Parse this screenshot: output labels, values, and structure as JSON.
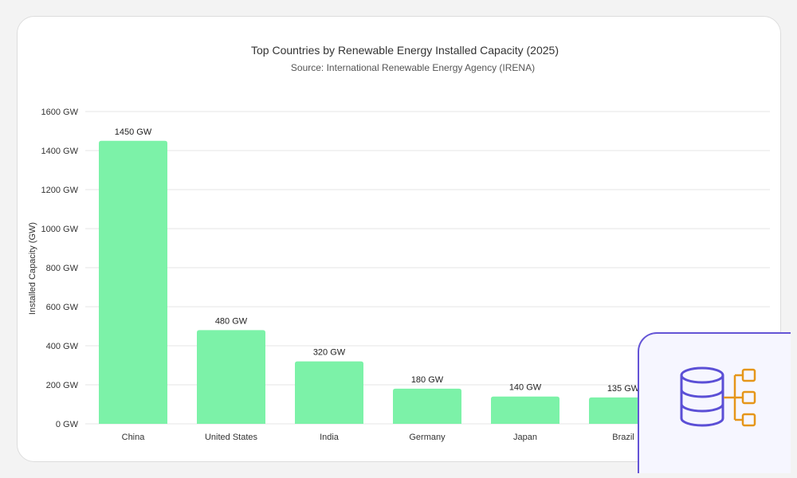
{
  "chart_data": {
    "type": "bar",
    "title": "Top Countries by Renewable Energy Installed Capacity (2025)",
    "subtitle": "Source: International Renewable Energy Agency (IRENA)",
    "ylabel": "Installed Capacity (GW)",
    "xlabel": "",
    "categories": [
      "China",
      "United States",
      "India",
      "Germany",
      "Japan",
      "Brazil"
    ],
    "values": [
      1450,
      480,
      320,
      180,
      140,
      135
    ],
    "data_labels": [
      "1450 GW",
      "480 GW",
      "320 GW",
      "180 GW",
      "140 GW",
      "135 GW"
    ],
    "ylim": [
      0,
      1600
    ],
    "yticks": [
      0,
      200,
      400,
      600,
      800,
      1000,
      1200,
      1400,
      1600
    ],
    "ytick_labels": [
      "0 GW",
      "200 GW",
      "400 GW",
      "600 GW",
      "800 GW",
      "1000 GW",
      "1200 GW",
      "1400 GW",
      "1600 GW"
    ],
    "grid": true,
    "bar_color": "#7cf2a8"
  },
  "overlay": {
    "icon": "database-hierarchy-icon",
    "border_color": "#6454d6",
    "db_color": "#5b4fd6",
    "node_color": "#e5961a"
  }
}
